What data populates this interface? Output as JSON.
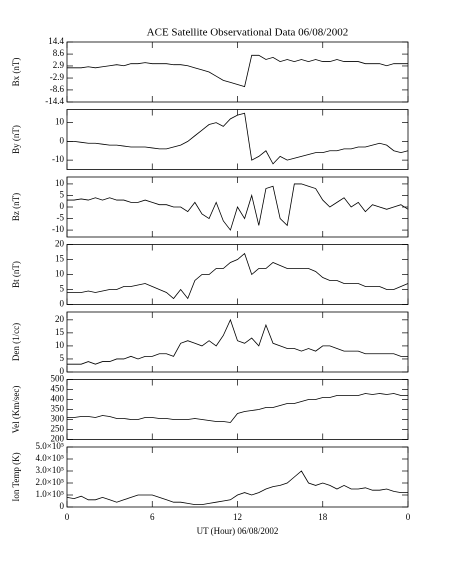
{
  "chart_data": [
    {
      "type": "line",
      "title": "ACE Satellite Observational Data   06/08/2002",
      "ylabel": "Bx (nT)",
      "x": [
        0,
        0.5,
        1,
        1.5,
        2,
        2.5,
        3,
        3.5,
        4,
        4.5,
        5,
        5.5,
        6,
        6.5,
        7,
        7.5,
        8,
        8.5,
        9,
        9.5,
        10,
        10.5,
        11,
        11.5,
        12,
        12.5,
        13,
        13.5,
        14,
        14.5,
        15,
        15.5,
        16,
        16.5,
        17,
        17.5,
        18,
        18.5,
        19,
        19.5,
        20,
        20.5,
        21,
        21.5,
        22,
        22.5,
        23,
        23.5,
        24
      ],
      "values": [
        2,
        2,
        2,
        2.5,
        2,
        2.5,
        3,
        3.5,
        3,
        4,
        4,
        4.5,
        4,
        4,
        4,
        3.5,
        3.5,
        3,
        2,
        1,
        0,
        -2,
        -4,
        -5,
        -6,
        -7,
        8,
        8,
        6,
        7,
        5,
        6,
        5,
        6,
        5,
        6,
        5,
        5,
        6,
        5,
        5,
        5,
        4,
        4,
        4,
        3,
        4,
        4,
        4
      ],
      "xlim": [
        0,
        24
      ],
      "ylim": [
        -14.4,
        14.4
      ],
      "yticks": [
        -14.4,
        -8.6,
        -2.9,
        2.9,
        8.6,
        14.4
      ]
    },
    {
      "type": "line",
      "ylabel": "By (nT)",
      "x": [
        0,
        0.5,
        1,
        1.5,
        2,
        2.5,
        3,
        3.5,
        4,
        4.5,
        5,
        5.5,
        6,
        6.5,
        7,
        7.5,
        8,
        8.5,
        9,
        9.5,
        10,
        10.5,
        11,
        11.5,
        12,
        12.5,
        13,
        13.5,
        14,
        14.5,
        15,
        15.5,
        16,
        16.5,
        17,
        17.5,
        18,
        18.5,
        19,
        19.5,
        20,
        20.5,
        21,
        21.5,
        22,
        22.5,
        23,
        23.5,
        24
      ],
      "values": [
        0,
        0,
        -0.5,
        -1,
        -1,
        -1.5,
        -2,
        -2,
        -2.5,
        -3,
        -3,
        -3,
        -3.5,
        -4,
        -4,
        -3,
        -2,
        0,
        3,
        6,
        9,
        10,
        8,
        12,
        14,
        15,
        -10,
        -8,
        -5,
        -12,
        -8,
        -10,
        -9,
        -8,
        -7,
        -6,
        -6,
        -5,
        -5,
        -4,
        -4,
        -3,
        -3,
        -2,
        -1,
        -2,
        -5,
        -6,
        -5
      ],
      "xlim": [
        0,
        24
      ],
      "ylim": [
        -15,
        17
      ],
      "yticks": [
        -10,
        0,
        10
      ]
    },
    {
      "type": "line",
      "ylabel": "Bz (nT)",
      "x": [
        0,
        0.5,
        1,
        1.5,
        2,
        2.5,
        3,
        3.5,
        4,
        4.5,
        5,
        5.5,
        6,
        6.5,
        7,
        7.5,
        8,
        8.5,
        9,
        9.5,
        10,
        10.5,
        11,
        11.5,
        12,
        12.5,
        13,
        13.5,
        14,
        14.5,
        15,
        15.5,
        16,
        16.5,
        17,
        17.5,
        18,
        18.5,
        19,
        19.5,
        20,
        20.5,
        21,
        21.5,
        22,
        22.5,
        23,
        23.5,
        24
      ],
      "values": [
        3,
        3,
        3.5,
        3,
        4,
        3,
        4,
        3,
        3,
        2,
        2,
        3,
        2,
        1,
        1,
        0,
        0,
        -2,
        2,
        -3,
        -5,
        2,
        -6,
        -10,
        0,
        -5,
        5,
        -8,
        8,
        9,
        -5,
        -8,
        10,
        10,
        9,
        8,
        3,
        0,
        2,
        4,
        0,
        2,
        -2,
        1,
        0,
        -1,
        0,
        1,
        -1
      ],
      "xlim": [
        0,
        24
      ],
      "ylim": [
        -13,
        13
      ],
      "yticks": [
        -10,
        -5,
        0,
        5,
        10
      ]
    },
    {
      "type": "line",
      "ylabel": "Bt (nT)",
      "x": [
        0,
        0.5,
        1,
        1.5,
        2,
        2.5,
        3,
        3.5,
        4,
        4.5,
        5,
        5.5,
        6,
        6.5,
        7,
        7.5,
        8,
        8.5,
        9,
        9.5,
        10,
        10.5,
        11,
        11.5,
        12,
        12.5,
        13,
        13.5,
        14,
        14.5,
        15,
        15.5,
        16,
        16.5,
        17,
        17.5,
        18,
        18.5,
        19,
        19.5,
        20,
        20.5,
        21,
        21.5,
        22,
        22.5,
        23,
        23.5,
        24
      ],
      "values": [
        4,
        4,
        4,
        4.5,
        4,
        4.5,
        5,
        5,
        6,
        6,
        6.5,
        7,
        6,
        5,
        4,
        2,
        5,
        2,
        8,
        10,
        10,
        12,
        12,
        14,
        15,
        17,
        10,
        12,
        12,
        14,
        13,
        12,
        12,
        12,
        12,
        11,
        9,
        8,
        8,
        7,
        7,
        7,
        6,
        6,
        6,
        5,
        5,
        6,
        7
      ],
      "xlim": [
        0,
        24
      ],
      "ylim": [
        0,
        20
      ],
      "yticks": [
        0,
        5,
        10,
        15,
        20
      ]
    },
    {
      "type": "line",
      "ylabel": "Den (1/cc)",
      "x": [
        0,
        0.5,
        1,
        1.5,
        2,
        2.5,
        3,
        3.5,
        4,
        4.5,
        5,
        5.5,
        6,
        6.5,
        7,
        7.5,
        8,
        8.5,
        9,
        9.5,
        10,
        10.5,
        11,
        11.5,
        12,
        12.5,
        13,
        13.5,
        14,
        14.5,
        15,
        15.5,
        16,
        16.5,
        17,
        17.5,
        18,
        18.5,
        19,
        19.5,
        20,
        20.5,
        21,
        21.5,
        22,
        22.5,
        23,
        23.5,
        24
      ],
      "values": [
        3,
        3,
        3,
        4,
        3,
        4,
        4,
        5,
        5,
        6,
        5,
        6,
        6,
        7,
        7,
        6,
        11,
        12,
        11,
        10,
        12,
        10,
        14,
        20,
        12,
        11,
        13,
        10,
        18,
        11,
        10,
        9,
        9,
        8,
        9,
        8,
        10,
        10,
        9,
        8,
        8,
        8,
        7,
        7,
        7,
        7,
        7,
        6,
        6
      ],
      "xlim": [
        0,
        24
      ],
      "ylim": [
        0,
        23
      ],
      "yticks": [
        0,
        5,
        10,
        15,
        20
      ]
    },
    {
      "type": "line",
      "ylabel": "Vel (Km/sec)",
      "x": [
        0,
        0.5,
        1,
        1.5,
        2,
        2.5,
        3,
        3.5,
        4,
        4.5,
        5,
        5.5,
        6,
        6.5,
        7,
        7.5,
        8,
        8.5,
        9,
        9.5,
        10,
        10.5,
        11,
        11.5,
        12,
        12.5,
        13,
        13.5,
        14,
        14.5,
        15,
        15.5,
        16,
        16.5,
        17,
        17.5,
        18,
        18.5,
        19,
        19.5,
        20,
        20.5,
        21,
        21.5,
        22,
        22.5,
        23,
        23.5,
        24
      ],
      "values": [
        310,
        310,
        315,
        315,
        310,
        320,
        315,
        305,
        305,
        300,
        300,
        310,
        310,
        305,
        305,
        300,
        300,
        300,
        305,
        300,
        295,
        290,
        290,
        285,
        330,
        340,
        345,
        350,
        360,
        360,
        370,
        380,
        380,
        390,
        400,
        400,
        410,
        410,
        420,
        420,
        420,
        420,
        430,
        425,
        430,
        425,
        430,
        420,
        420
      ],
      "xlim": [
        0,
        24
      ],
      "ylim": [
        200,
        500
      ],
      "yticks": [
        200,
        250,
        300,
        350,
        400,
        450,
        500
      ]
    },
    {
      "type": "line",
      "ylabel": "Ion Temp (K)",
      "xlabel": "UT (Hour)  06/08/2002",
      "x": [
        0,
        0.5,
        1,
        1.5,
        2,
        2.5,
        3,
        3.5,
        4,
        4.5,
        5,
        5.5,
        6,
        6.5,
        7,
        7.5,
        8,
        8.5,
        9,
        9.5,
        10,
        10.5,
        11,
        11.5,
        12,
        12.5,
        13,
        13.5,
        14,
        14.5,
        15,
        15.5,
        16,
        16.5,
        17,
        17.5,
        18,
        18.5,
        19,
        19.5,
        20,
        20.5,
        21,
        21.5,
        22,
        22.5,
        23,
        23.5,
        24
      ],
      "values": [
        80000,
        70000,
        90000,
        60000,
        60000,
        80000,
        60000,
        40000,
        60000,
        80000,
        100000,
        100000,
        100000,
        80000,
        60000,
        40000,
        40000,
        30000,
        20000,
        20000,
        30000,
        40000,
        50000,
        60000,
        100000,
        120000,
        100000,
        120000,
        150000,
        170000,
        180000,
        200000,
        250000,
        300000,
        200000,
        180000,
        200000,
        180000,
        150000,
        180000,
        150000,
        150000,
        160000,
        140000,
        140000,
        150000,
        130000,
        120000,
        120000
      ],
      "xlim": [
        0,
        24
      ],
      "ylim": [
        0,
        500000
      ],
      "yticks": [
        0,
        {
          "value": 100000,
          "label": "1.0×10⁵"
        },
        {
          "value": 200000,
          "label": "2.0×10⁵"
        },
        {
          "value": 300000,
          "label": "3.0×10⁵"
        },
        {
          "value": 400000,
          "label": "4.0×10⁵"
        },
        {
          "value": 500000,
          "label": "5.0×10⁵"
        }
      ],
      "xticks": [
        0,
        6,
        12,
        18,
        {
          "value": 24,
          "label": "0"
        }
      ]
    }
  ]
}
